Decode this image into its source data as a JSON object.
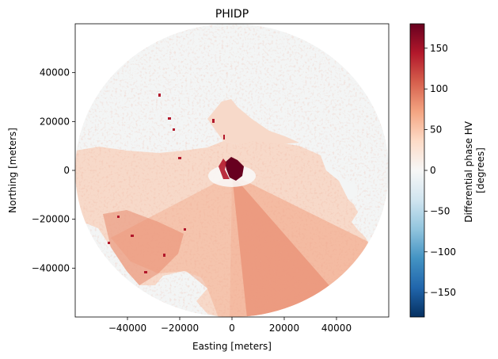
{
  "chart_data": {
    "type": "heatmap",
    "title": "PHIDP",
    "xlabel": "Easting [meters]",
    "ylabel": "Northing [meters]",
    "xlim": [
      -60000,
      60000
    ],
    "ylim": [
      -60000,
      60000
    ],
    "xticks": [
      -40000,
      -20000,
      0,
      20000,
      40000
    ],
    "yticks": [
      -40000,
      -20000,
      0,
      20000,
      40000
    ],
    "xtick_labels": [
      "−40000",
      "−20000",
      "0",
      "20000",
      "40000"
    ],
    "ytick_labels": [
      "−40000",
      "−20000",
      "0",
      "20000",
      "40000"
    ],
    "grid": false,
    "colorbar": {
      "label_line1": "Differential phase HV",
      "label_line2": "[degrees]",
      "range": [
        -180,
        180
      ],
      "colormap": "RdBu_r",
      "ticks": [
        -150,
        -100,
        -50,
        0,
        50,
        100,
        150
      ],
      "tick_labels": [
        "−150",
        "−100",
        "−50",
        "0",
        "50",
        "100",
        "150"
      ]
    },
    "field": {
      "radar_range_m": 60000,
      "background_value": 0,
      "echo_value_typical": 50,
      "echo_value_strong": 75,
      "center_clutter_value": 180
    }
  },
  "colors": {
    "background_disk": "#f3f5f5",
    "echo_light": "#f7d9c9",
    "echo_mid": "#f3b59b",
    "echo_strong": "#e88a6e",
    "echo_dark": "#b2182b",
    "center_clutter": "#67001f"
  }
}
